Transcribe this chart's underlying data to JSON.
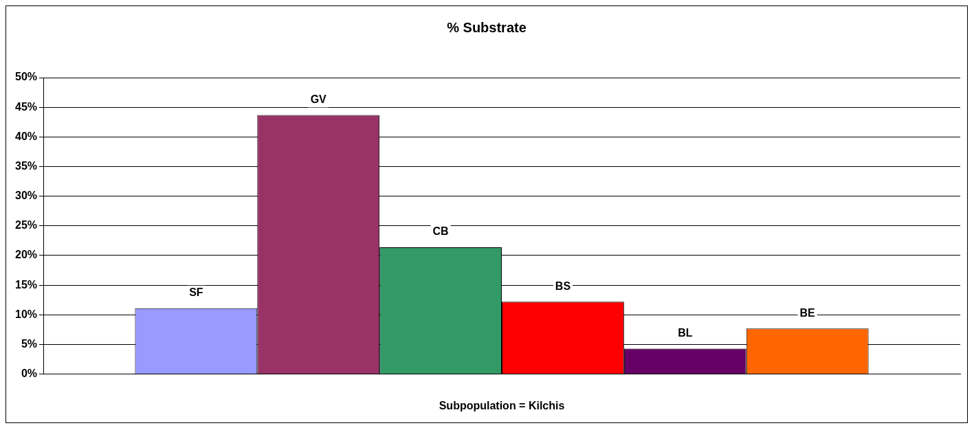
{
  "chart_data": {
    "type": "bar",
    "title": "% Substrate",
    "xlabel": "Subpopulation = Kilchis",
    "categories": [
      null
    ],
    "series": [
      {
        "name": "SF",
        "color": "#9999ff",
        "values": [
          11.1
        ]
      },
      {
        "name": "GV",
        "color": "#993366",
        "values": [
          43.7
        ]
      },
      {
        "name": "CB",
        "color": "#339966",
        "values": [
          21.4
        ]
      },
      {
        "name": "BS",
        "color": "#ff0000",
        "values": [
          12.2
        ]
      },
      {
        "name": "BL",
        "color": "#660066",
        "values": [
          4.3
        ]
      },
      {
        "name": "BE",
        "color": "#ff6600",
        "values": [
          7.7
        ]
      }
    ],
    "ylim": [
      0,
      50
    ],
    "yticks": [
      {
        "value": 0,
        "label": "0%"
      },
      {
        "value": 5,
        "label": "5%"
      },
      {
        "value": 10,
        "label": "10%"
      },
      {
        "value": 15,
        "label": "15%"
      },
      {
        "value": 20,
        "label": "20%"
      },
      {
        "value": 25,
        "label": "25%"
      },
      {
        "value": 30,
        "label": "30%"
      },
      {
        "value": 35,
        "label": "35%"
      },
      {
        "value": 40,
        "label": "40%"
      },
      {
        "value": 45,
        "label": "45%"
      },
      {
        "value": 50,
        "label": "50%"
      }
    ],
    "grid": "y",
    "legend": false
  }
}
